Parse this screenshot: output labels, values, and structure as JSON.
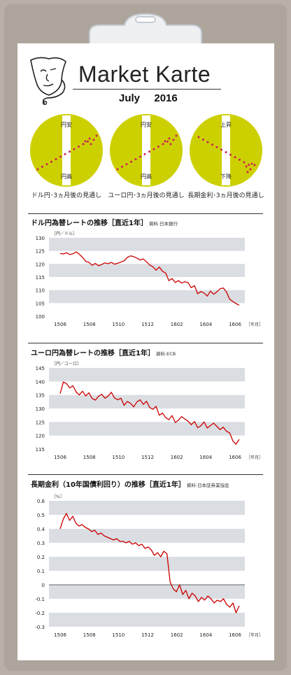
{
  "header": {
    "title": "Market Karte",
    "date": "July  2016"
  },
  "colors": {
    "accent": "#cdd000",
    "line": "#cc0000",
    "band": "#dadde2",
    "dots": "#cc2255"
  },
  "forecasts": [
    {
      "top": "円安",
      "bottom": "円高",
      "trend": "up",
      "label": "ドル円･3ヵ月後の見通し"
    },
    {
      "top": "円安",
      "bottom": "円高",
      "trend": "up",
      "label": "ユーロ円･3ヵ月後の見通し"
    },
    {
      "top": "上昇",
      "bottom": "下降",
      "trend": "down",
      "label": "長期金利･3ヵ月後の見通し"
    }
  ],
  "sections": [
    {
      "title": "ドル円為替レートの推移［直近1年］",
      "source": "資料:日本銀行"
    },
    {
      "title": "ユーロ円為替レートの推移［直近1年］",
      "source": "資料:ECB"
    },
    {
      "title": "長期金利（10年国債利回り）の推移［直近1年］",
      "source": "資料:日本証券業協会"
    }
  ],
  "chart_data": [
    {
      "type": "line",
      "title": "ドル円為替レートの推移［直近1年］",
      "ylabel": "［円／ドル］",
      "xlabel": "［年月］",
      "ylim": [
        100,
        130
      ],
      "yticks": [
        "130",
        "125",
        "120",
        "115",
        "110",
        "105",
        "100"
      ],
      "xticks": [
        "1506",
        "1508",
        "1510",
        "1512",
        "1602",
        "1604",
        "1606"
      ],
      "grid": "alternating bands",
      "series": [
        {
          "values": [
            124.0,
            123.8,
            124.3,
            123.6,
            123.9,
            124.6,
            123.7,
            122.5,
            121.0,
            120.6,
            119.5,
            120.2,
            119.3,
            119.8,
            120.4,
            120.1,
            120.6,
            119.9,
            120.3,
            120.7,
            121.2,
            122.5,
            123.1,
            122.8,
            122.2,
            121.5,
            121.9,
            120.8,
            119.6,
            118.9,
            117.6,
            118.8,
            117.2,
            116.5,
            113.6,
            114.4,
            112.9,
            113.6,
            112.7,
            113.2,
            112.8,
            110.9,
            111.7,
            108.6,
            109.4,
            108.9,
            107.7,
            109.6,
            108.4,
            109.3,
            110.5,
            110.8,
            109.3,
            106.5,
            105.6,
            104.8,
            104.2
          ]
        }
      ]
    },
    {
      "type": "line",
      "title": "ユーロ円為替レートの推移［直近1年］",
      "ylabel": "［円／ユーロ］",
      "xlabel": "［年月］",
      "ylim": [
        115,
        145
      ],
      "yticks": [
        "145",
        "140",
        "135",
        "130",
        "125",
        "120",
        "115"
      ],
      "xticks": [
        "1506",
        "1508",
        "1510",
        "1512",
        "1602",
        "1604",
        "1606"
      ],
      "grid": "alternating bands",
      "series": [
        {
          "values": [
            135.5,
            139.8,
            139.2,
            137.6,
            138.4,
            136.1,
            135.0,
            136.4,
            134.6,
            135.8,
            133.7,
            133.1,
            134.5,
            135.3,
            133.8,
            134.6,
            136.0,
            133.9,
            133.2,
            133.8,
            131.2,
            132.6,
            131.9,
            130.6,
            132.4,
            133.2,
            131.5,
            132.7,
            130.4,
            129.7,
            130.8,
            127.5,
            128.3,
            126.6,
            125.9,
            127.4,
            124.8,
            125.7,
            127.0,
            126.1,
            125.3,
            124.0,
            125.2,
            122.9,
            123.6,
            125.0,
            122.8,
            123.7,
            124.6,
            123.4,
            122.2,
            123.1,
            121.6,
            121.0,
            118.0,
            116.8,
            118.6
          ]
        }
      ]
    },
    {
      "type": "line",
      "title": "長期金利（10年国債利回り）の推移［直近1年］",
      "ylabel": "［%］",
      "xlabel": "［年月］",
      "ylim": [
        -0.3,
        0.6
      ],
      "yticks": [
        "0.6",
        "0.5",
        "0.4",
        "0.3",
        "0.2",
        "0.1",
        "0",
        "-0.1",
        "-0.2",
        "-0.3"
      ],
      "xticks": [
        "1506",
        "1508",
        "1510",
        "1512",
        "1602",
        "1604",
        "1606"
      ],
      "grid": "alternating bands",
      "series": [
        {
          "values": [
            0.4,
            0.47,
            0.51,
            0.46,
            0.49,
            0.44,
            0.42,
            0.43,
            0.41,
            0.4,
            0.38,
            0.39,
            0.36,
            0.37,
            0.35,
            0.34,
            0.33,
            0.32,
            0.33,
            0.31,
            0.31,
            0.3,
            0.31,
            0.29,
            0.3,
            0.28,
            0.29,
            0.26,
            0.27,
            0.25,
            0.21,
            0.23,
            0.2,
            0.24,
            0.22,
            0.02,
            -0.03,
            -0.05,
            0.0,
            -0.07,
            -0.04,
            -0.1,
            -0.06,
            -0.08,
            -0.12,
            -0.09,
            -0.11,
            -0.08,
            -0.1,
            -0.13,
            -0.11,
            -0.12,
            -0.1,
            -0.14,
            -0.16,
            -0.13,
            -0.2,
            -0.15
          ]
        }
      ]
    }
  ]
}
